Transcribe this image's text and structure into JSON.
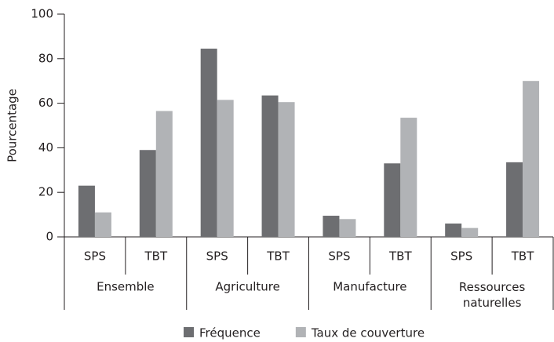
{
  "chart_data": {
    "type": "bar",
    "y_label": "Pourcentage",
    "categories": [
      "SPS",
      "TBT",
      "SPS",
      "TBT",
      "SPS",
      "TBT",
      "SPS",
      "TBT"
    ],
    "groups": [
      "Ensemble",
      "Agriculture",
      "Manufacture",
      "Ressources naturelles"
    ],
    "series": [
      {
        "name": "Fréquence",
        "color": "#6d6e71",
        "values": [
          23,
          39,
          84.5,
          63.5,
          9.5,
          33,
          6,
          33.5
        ]
      },
      {
        "name": "Taux de couverture",
        "color": "#b1b3b6",
        "values": [
          11,
          56.5,
          61.5,
          60.5,
          8,
          53.5,
          4,
          70
        ]
      }
    ],
    "ylim": [
      0,
      100
    ],
    "yticks": [
      0,
      20,
      40,
      60,
      80,
      100
    ],
    "grid": false,
    "legend": "bottom"
  }
}
